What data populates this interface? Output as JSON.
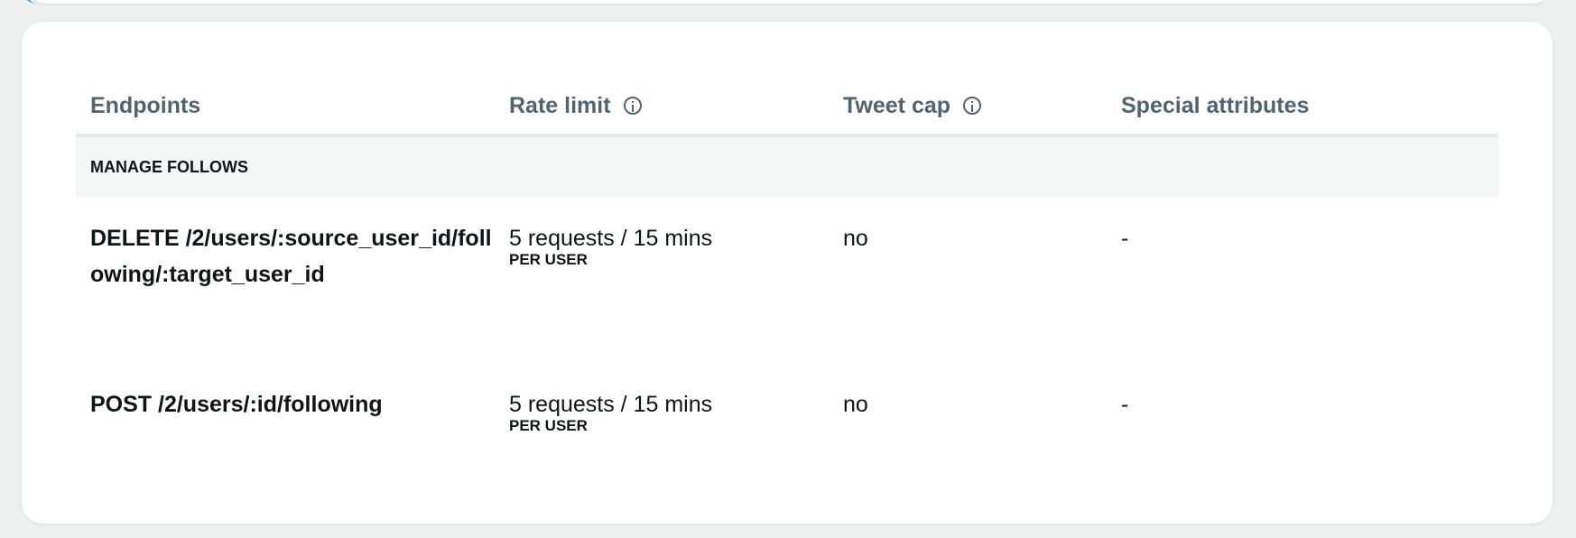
{
  "table": {
    "headers": {
      "endpoints": "Endpoints",
      "rate_limit": "Rate limit",
      "tweet_cap": "Tweet cap",
      "special_attributes": "Special attributes"
    },
    "section": "MANAGE FOLLOWS",
    "rows": [
      {
        "endpoint": "DELETE /2/users/:source_user_id/following/:target_user_id",
        "rate_limit": "5 requests / 15 mins",
        "rate_scope": "PER USER",
        "tweet_cap": "no",
        "special": "-"
      },
      {
        "endpoint": "POST /2/users/:id/following",
        "rate_limit": "5 requests / 15 mins",
        "rate_scope": "PER USER",
        "tweet_cap": "no",
        "special": "-"
      }
    ]
  },
  "colors": {
    "accent": "#1d9bf0",
    "header_text": "#536471",
    "text": "#0f1419"
  }
}
